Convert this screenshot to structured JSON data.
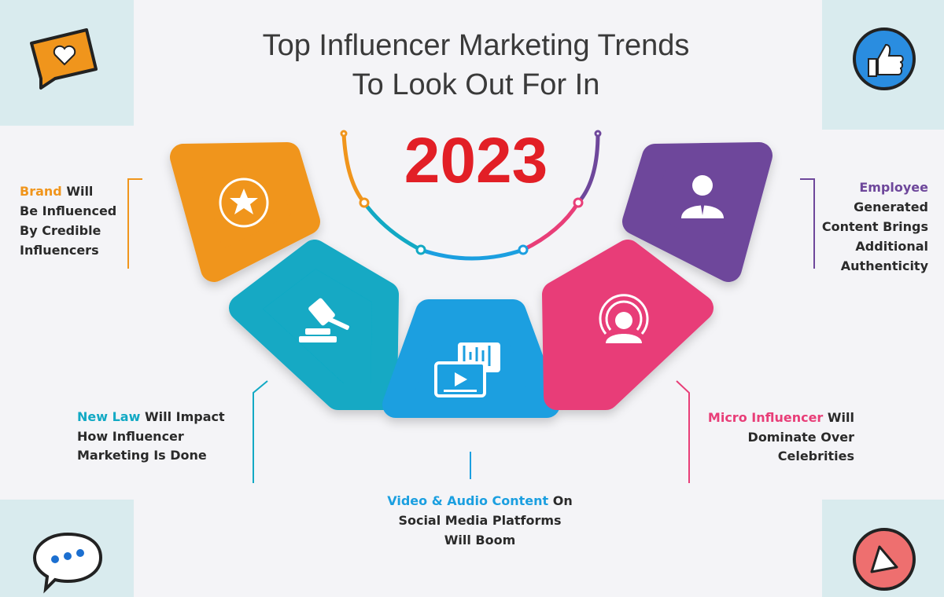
{
  "title": {
    "line1": "Top Influencer Marketing Trends",
    "line2": "To Look Out For In",
    "year": "2023"
  },
  "trends": [
    {
      "highlight": "Brand",
      "rest": "Will",
      "lines": [
        "Be Influenced",
        "By Credible",
        "Influencers"
      ]
    },
    {
      "highlight": "New Law",
      "rest": "Will Impact",
      "lines": [
        "How Influencer",
        "Marketing Is Done"
      ]
    },
    {
      "highlight": "Video & Audio Content",
      "rest": "On",
      "lines": [
        "Social Media Platforms",
        "Will Boom"
      ]
    },
    {
      "highlight": "Micro Influencer",
      "rest": "Will",
      "lines": [
        "Dominate Over",
        "Celebrities"
      ]
    },
    {
      "highlight": "Employee",
      "lines": [
        "Generated",
        "Content Brings",
        "Additional",
        "Authenticity"
      ]
    }
  ]
}
